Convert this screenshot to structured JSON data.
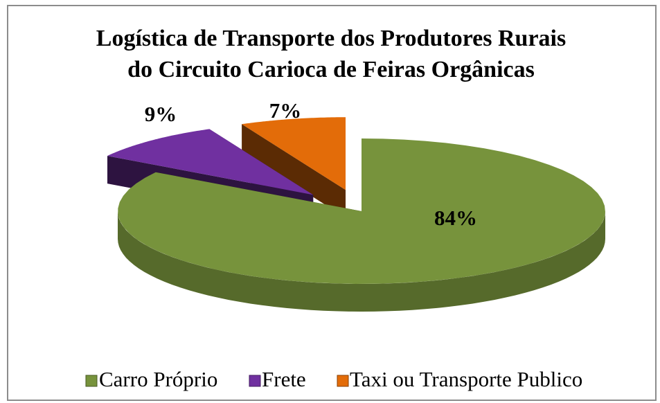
{
  "chart_data": {
    "type": "pie3d",
    "title": "Logística de Transporte dos Produtores Rurais do Circuito Carioca de Feiras Orgânicas",
    "title_lines": [
      "Logística de Transporte dos Produtores Rurais",
      "do Circuito Carioca de Feiras Orgânicas"
    ],
    "categories": [
      "Carro Próprio",
      "Frete",
      "Taxi ou Transporte Publico"
    ],
    "values": [
      84,
      9,
      7
    ],
    "value_labels": [
      "84%",
      "9%",
      "7%"
    ],
    "colors": [
      "#77933c",
      "#7030a0",
      "#e36c09"
    ],
    "legend": "bottom"
  }
}
